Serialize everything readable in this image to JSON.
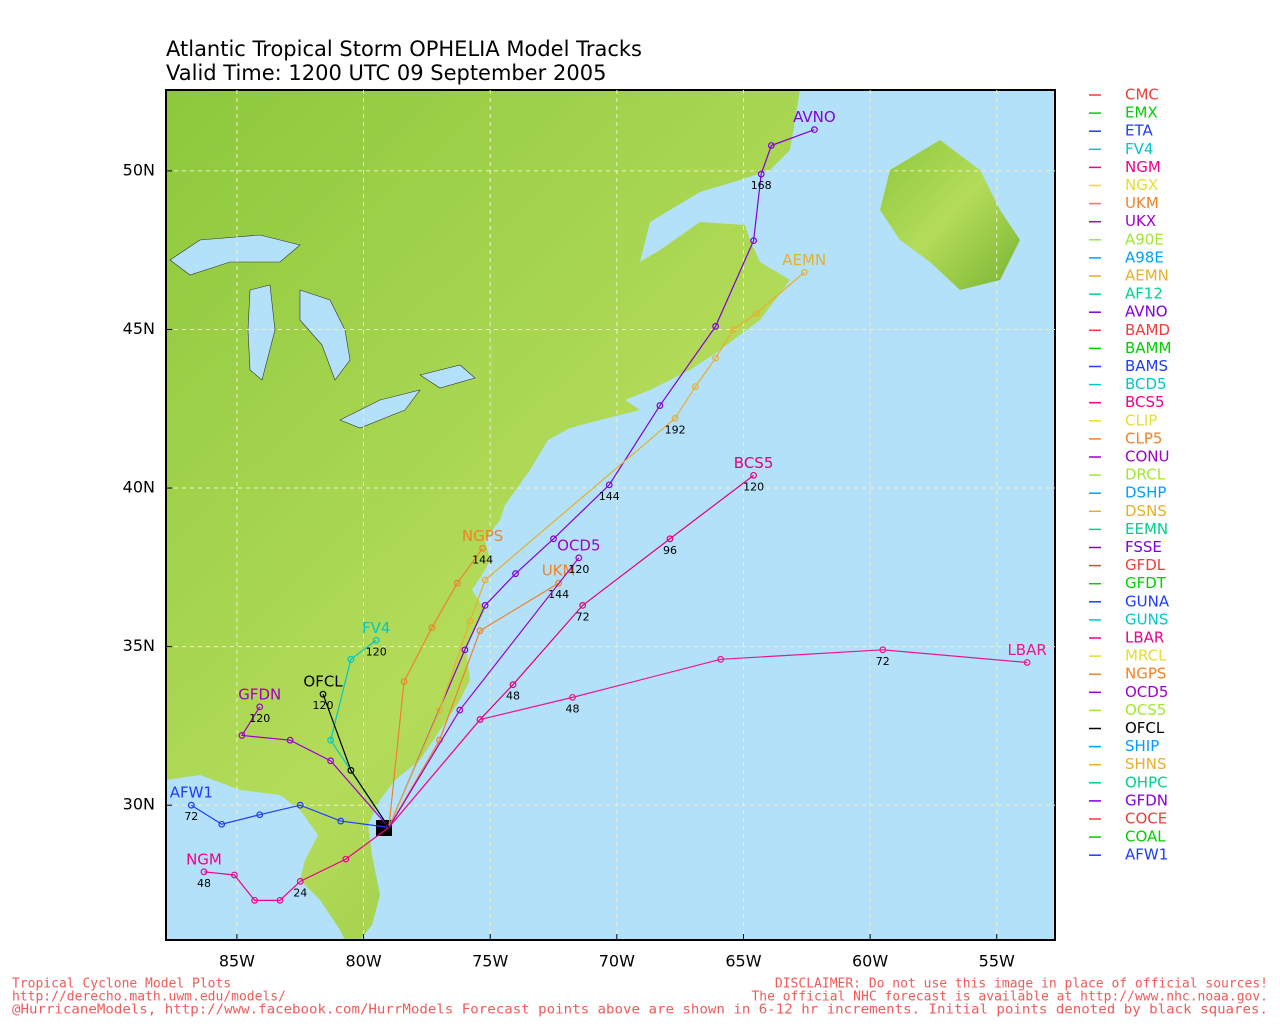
{
  "chart_data": {
    "type": "map",
    "title": "Atlantic Tropical Storm OPHELIA Model Tracks",
    "subtitle": "Valid Time: 1200 UTC 09 September 2005",
    "xlim": [
      -87.8,
      -52.7
    ],
    "ylim": [
      25.75,
      52.55
    ],
    "xticks": [
      {
        "value": -85,
        "label": "85W"
      },
      {
        "value": -80,
        "label": "80W"
      },
      {
        "value": -75,
        "label": "75W"
      },
      {
        "value": -70,
        "label": "70W"
      },
      {
        "value": -65,
        "label": "65W"
      },
      {
        "value": -60,
        "label": "60W"
      },
      {
        "value": -55,
        "label": "55W"
      }
    ],
    "yticks": [
      {
        "value": 30,
        "label": "30N"
      },
      {
        "value": 35,
        "label": "35N"
      },
      {
        "value": 40,
        "label": "40N"
      },
      {
        "value": 45,
        "label": "45N"
      },
      {
        "value": 50,
        "label": "50N"
      }
    ],
    "grid": true,
    "series": [
      {
        "name": "AVNO",
        "color": "#8200dc",
        "x": [
          -79.0,
          -76.0,
          -75.2,
          -74.0,
          -72.5,
          -70.3,
          -68.3,
          -66.1,
          -64.6,
          -64.3,
          -63.9,
          -62.2
        ],
        "values": [
          29.3,
          34.9,
          36.3,
          37.3,
          38.4,
          40.1,
          42.6,
          45.1,
          47.8,
          49.9,
          50.8,
          51.3
        ],
        "hours": [
          null,
          null,
          null,
          null,
          null,
          144,
          null,
          null,
          null,
          168,
          null,
          null
        ]
      },
      {
        "name": "BCS5",
        "color": "#e0007f",
        "x": [
          -79.0,
          -75.4,
          -74.1,
          -71.35,
          -67.9,
          -64.6
        ],
        "values": [
          29.3,
          32.7,
          33.8,
          36.3,
          38.4,
          40.4
        ],
        "hours": [
          null,
          null,
          48,
          72,
          96,
          120
        ]
      },
      {
        "name": "LBAR",
        "color": "#f0148c",
        "x": [
          -79.0,
          -75.4,
          -71.75,
          -65.9,
          -59.5,
          -53.8
        ],
        "values": [
          29.3,
          32.7,
          33.4,
          34.6,
          34.9,
          34.5
        ],
        "hours": [
          null,
          null,
          48,
          null,
          72,
          null
        ]
      },
      {
        "name": "NGM",
        "color": "#f0008c",
        "x": [
          -79.0,
          -80.7,
          -82.5,
          -83.3,
          -84.3,
          -85.1,
          -86.3
        ],
        "values": [
          29.3,
          28.3,
          27.6,
          27.0,
          27.0,
          27.8,
          27.9
        ],
        "hours": [
          null,
          null,
          24,
          null,
          null,
          null,
          48
        ]
      },
      {
        "name": "AFW1",
        "color": "#1e3cff",
        "x": [
          -79.0,
          -80.9,
          -82.5,
          -84.1,
          -85.6,
          -86.8
        ],
        "values": [
          29.3,
          29.5,
          30.0,
          29.7,
          29.4,
          30.0
        ],
        "hours": [
          null,
          null,
          null,
          null,
          null,
          72
        ]
      },
      {
        "name": "AEMN",
        "color": "#e6af2d",
        "x": [
          -79.0,
          -77.0,
          -75.8,
          -75.2,
          -67.7,
          -66.9,
          -66.1,
          -65.4,
          -64.5,
          -62.6
        ],
        "values": [
          29.3,
          33.0,
          35.8,
          37.1,
          42.2,
          43.2,
          44.1,
          45.0,
          45.5,
          46.8
        ],
        "hours": [
          null,
          null,
          null,
          null,
          192,
          null,
          null,
          null,
          null,
          null
        ]
      },
      {
        "name": "NGPS",
        "color": "#f08228",
        "x": [
          -79.0,
          -78.4,
          -77.3,
          -76.3,
          -75.3
        ],
        "values": [
          29.3,
          33.9,
          35.6,
          37.0,
          38.1
        ],
        "hours": [
          null,
          null,
          null,
          null,
          144
        ]
      },
      {
        "name": "UKM",
        "color": "#f08228",
        "x": [
          -79.0,
          -77.0,
          -75.4,
          -72.3
        ],
        "values": [
          29.3,
          32.05,
          35.5,
          37.0
        ],
        "hours": [
          null,
          null,
          null,
          144
        ]
      },
      {
        "name": "OCD5",
        "color": "#a000c8",
        "x": [
          -79.0,
          -76.2,
          -71.5
        ],
        "values": [
          29.3,
          33.0,
          37.8
        ],
        "hours": [
          null,
          null,
          120
        ]
      },
      {
        "name": "FV4",
        "color": "#00c8c8",
        "x": [
          -79.0,
          -81.3,
          -80.5,
          -79.5
        ],
        "values": [
          29.3,
          32.05,
          34.6,
          35.2
        ],
        "hours": [
          null,
          null,
          null,
          120
        ]
      },
      {
        "name": "GFDN",
        "color": "#a000c8",
        "x": [
          -79.0,
          -81.3,
          -82.9,
          -84.8,
          -84.1
        ],
        "values": [
          29.3,
          31.4,
          32.05,
          32.2,
          33.1
        ],
        "hours": [
          null,
          null,
          null,
          null,
          120
        ]
      },
      {
        "name": "OFCL",
        "color": "#000000",
        "x": [
          -79.0,
          -80.5,
          -81.6
        ],
        "values": [
          29.3,
          31.1,
          33.5
        ],
        "hours": [
          null,
          null,
          120
        ]
      }
    ],
    "legend": [
      {
        "name": "CMC",
        "color": "#f03c3c"
      },
      {
        "name": "EMX",
        "color": "#00d000"
      },
      {
        "name": "ETA",
        "color": "#1e3cff"
      },
      {
        "name": "FV4",
        "color": "#00c8c8"
      },
      {
        "name": "NGM",
        "color": "#f0008c"
      },
      {
        "name": "NGX",
        "color": "#e6dc32"
      },
      {
        "name": "UKM",
        "color": "#f08228"
      },
      {
        "name": "UKX",
        "color": "#a000c8"
      },
      {
        "name": "A90E",
        "color": "#a0e632"
      },
      {
        "name": "A98E",
        "color": "#00a0ff"
      },
      {
        "name": "AEMN",
        "color": "#e6af2d"
      },
      {
        "name": "AF12",
        "color": "#00d28c"
      },
      {
        "name": "AVNO",
        "color": "#8200dc"
      },
      {
        "name": "BAMD",
        "color": "#f03c3c"
      },
      {
        "name": "BAMM",
        "color": "#00d000"
      },
      {
        "name": "BAMS",
        "color": "#1e3cff"
      },
      {
        "name": "BCD5",
        "color": "#00c8c8"
      },
      {
        "name": "BCS5",
        "color": "#f0008c"
      },
      {
        "name": "CLIP",
        "color": "#e6dc32"
      },
      {
        "name": "CLP5",
        "color": "#f08228"
      },
      {
        "name": "CONU",
        "color": "#a000c8"
      },
      {
        "name": "DRCL",
        "color": "#a0e632"
      },
      {
        "name": "DSHP",
        "color": "#00a0ff"
      },
      {
        "name": "DSNS",
        "color": "#e6af2d"
      },
      {
        "name": "EEMN",
        "color": "#00d28c"
      },
      {
        "name": "FSSE",
        "color": "#8200dc"
      },
      {
        "name": "GFDL",
        "color": "#f03c3c"
      },
      {
        "name": "GFDT",
        "color": "#00d000"
      },
      {
        "name": "GUNA",
        "color": "#1e3cff"
      },
      {
        "name": "GUNS",
        "color": "#00c8c8"
      },
      {
        "name": "LBAR",
        "color": "#f0008c"
      },
      {
        "name": "MRCL",
        "color": "#e6dc32"
      },
      {
        "name": "NGPS",
        "color": "#f08228"
      },
      {
        "name": "OCD5",
        "color": "#a000c8"
      },
      {
        "name": "OCS5",
        "color": "#a0e632"
      },
      {
        "name": "OFCL",
        "color": "#000000"
      },
      {
        "name": "SHIP",
        "color": "#00a0ff"
      },
      {
        "name": "SHNS",
        "color": "#e6af2d"
      },
      {
        "name": "OHPC",
        "color": "#00d28c"
      },
      {
        "name": "GFDN",
        "color": "#8200dc"
      },
      {
        "name": "COCE",
        "color": "#f03c3c"
      },
      {
        "name": "COAL",
        "color": "#00d000"
      },
      {
        "name": "AFW1",
        "color": "#1e3cff"
      }
    ],
    "footer_left": [
      "Tropical Cyclone Model Plots",
      "http://derecho.math.uwm.edu/models/",
      "@HurricaneModels, http://www.facebook.com/HurrModels  Forecast points above are shown in 6-12 hr increments. Initial points denoted by black squares."
    ],
    "footer_right": [
      "DISCLAIMER: Do not use this image in place of official sources!",
      "The official NHC forecast is available at http://www.nhc.noaa.gov."
    ]
  }
}
